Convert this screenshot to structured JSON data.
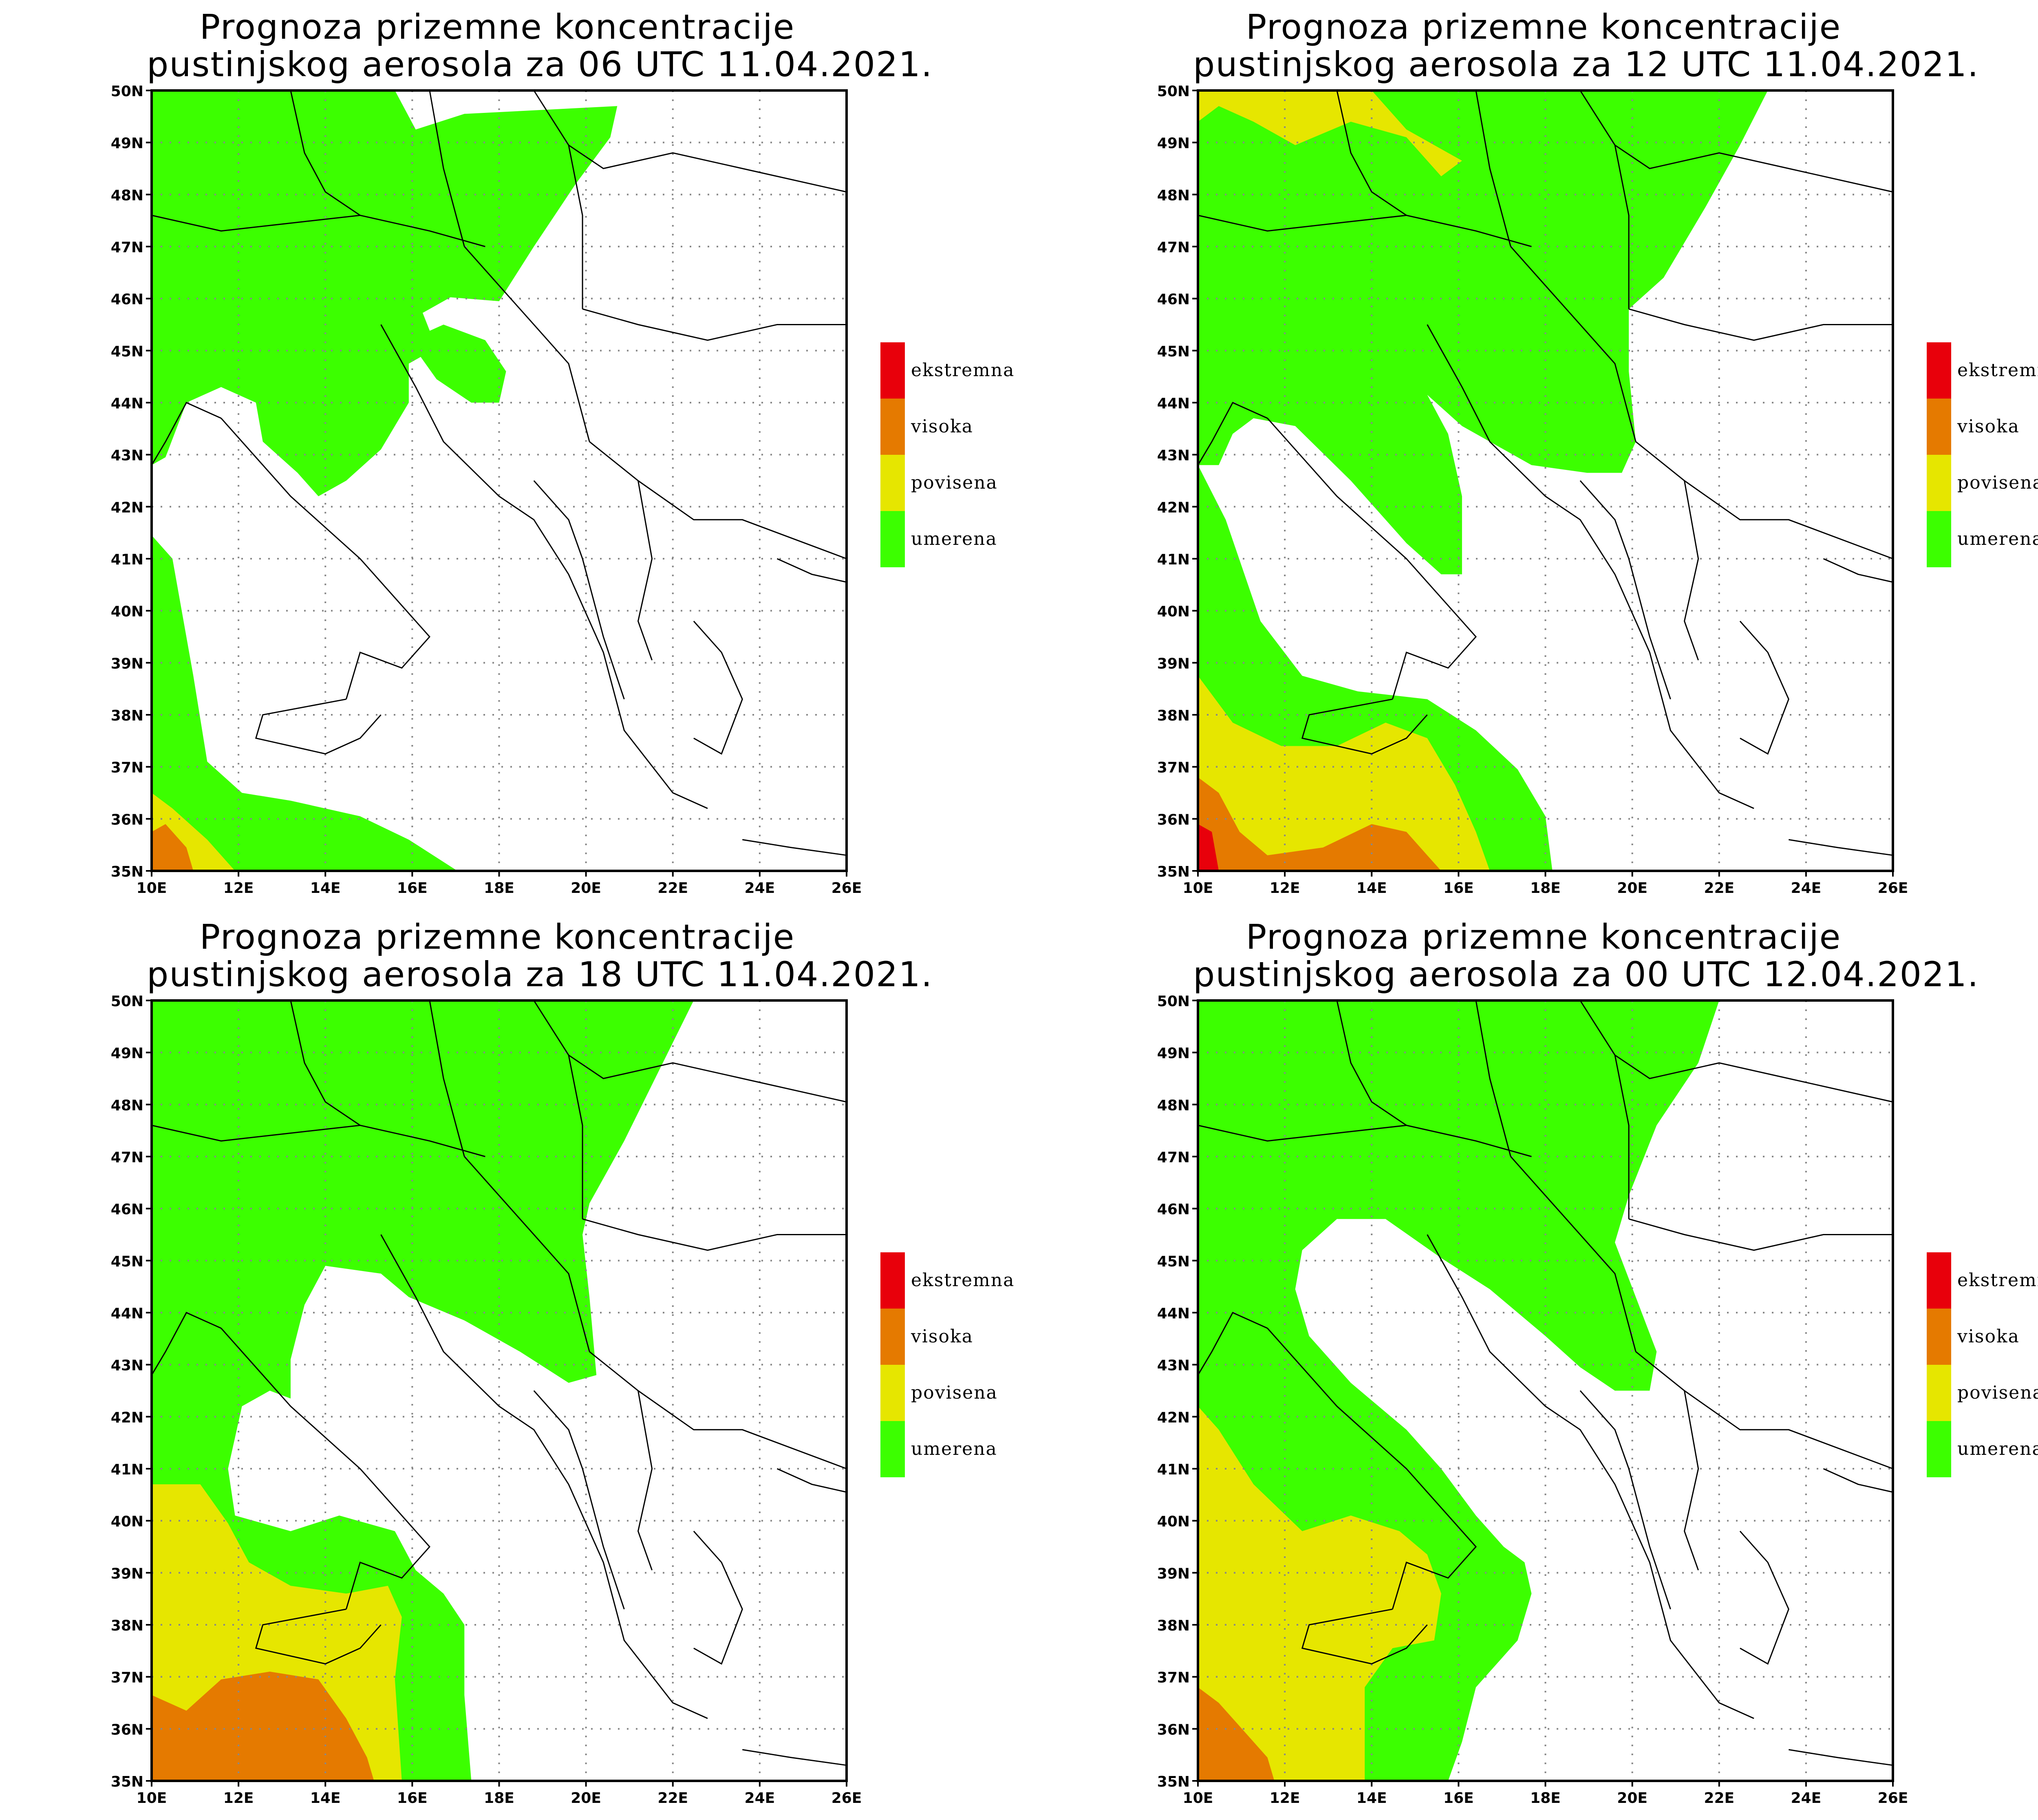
{
  "panels": [
    {
      "title_line1": "Prognoza prizemne koncentracije",
      "title_line2": "pustinjskog aerosola za 06 UTC 11.04.2021."
    },
    {
      "title_line1": "Prognoza prizemne koncentracije",
      "title_line2": "pustinjskog aerosola za 12 UTC 11.04.2021."
    },
    {
      "title_line1": "Prognoza prizemne koncentracije",
      "title_line2": "pustinjskog aerosola za 18 UTC 11.04.2021."
    },
    {
      "title_line1": "Prognoza prizemne koncentracije",
      "title_line2": "pustinjskog aerosola za 00 UTC 12.04.2021."
    }
  ],
  "lat_labels": [
    "50N",
    "49N",
    "48N",
    "47N",
    "46N",
    "45N",
    "44N",
    "43N",
    "42N",
    "41N",
    "40N",
    "39N",
    "38N",
    "37N",
    "36N",
    "35N"
  ],
  "lon_labels": [
    "10E",
    "12E",
    "14E",
    "16E",
    "18E",
    "20E",
    "22E",
    "24E",
    "26E"
  ],
  "legend": [
    {
      "label": "ekstremna",
      "color": "#e8000b"
    },
    {
      "label": "visoka",
      "color": "#e57a00"
    },
    {
      "label": "povisena",
      "color": "#e6e600"
    },
    {
      "label": "umerena",
      "color": "#3cff00"
    }
  ],
  "colors": {
    "umerena": "#3cff00",
    "povisena": "#e6e600",
    "visoka": "#e57a00",
    "ekstremna": "#e8000b",
    "coast": "#000000",
    "grid": "#888888"
  }
}
